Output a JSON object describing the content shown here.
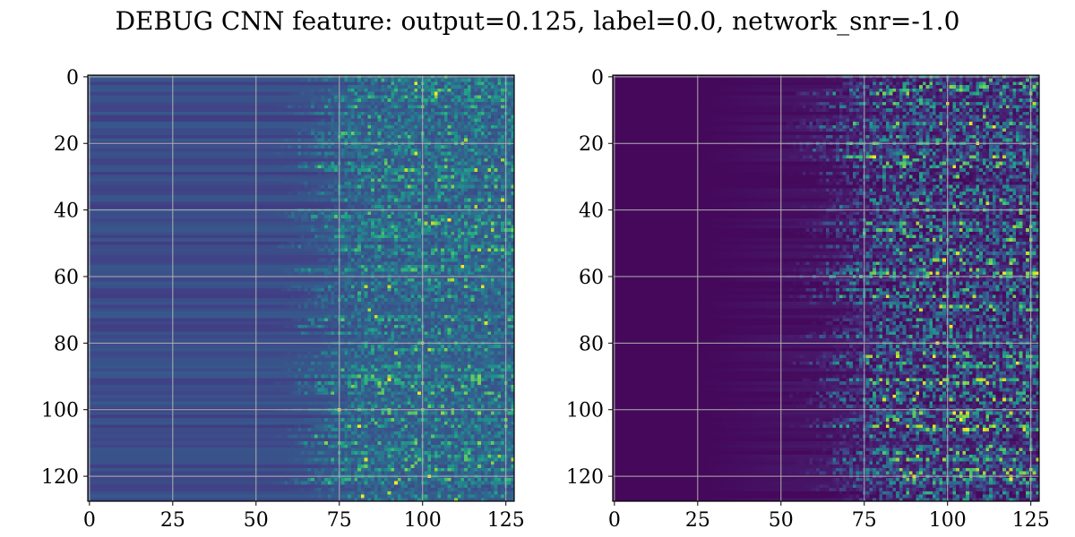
{
  "figure": {
    "title": "DEBUG CNN feature: output=0.125, label=0.0, network_snr=-1.0"
  },
  "chart_data": [
    {
      "type": "heatmap",
      "name": "left",
      "rows": 128,
      "cols": 128,
      "xlim": [
        -0.5,
        127.5
      ],
      "ylim": [
        127.5,
        -0.5
      ],
      "xticks": [
        0,
        25,
        50,
        75,
        100,
        125
      ],
      "yticks": [
        0,
        20,
        40,
        60,
        80,
        100,
        120
      ],
      "grid": true,
      "colormap": "viridis",
      "xlabel": "",
      "ylabel": ""
    },
    {
      "type": "heatmap",
      "name": "right",
      "rows": 128,
      "cols": 128,
      "xlim": [
        -0.5,
        127.5
      ],
      "ylim": [
        127.5,
        -0.5
      ],
      "xticks": [
        0,
        25,
        50,
        75,
        100,
        125
      ],
      "yticks": [
        0,
        20,
        40,
        60,
        80,
        100,
        120
      ],
      "grid": true,
      "colormap": "viridis",
      "xlabel": "",
      "ylabel": ""
    }
  ]
}
